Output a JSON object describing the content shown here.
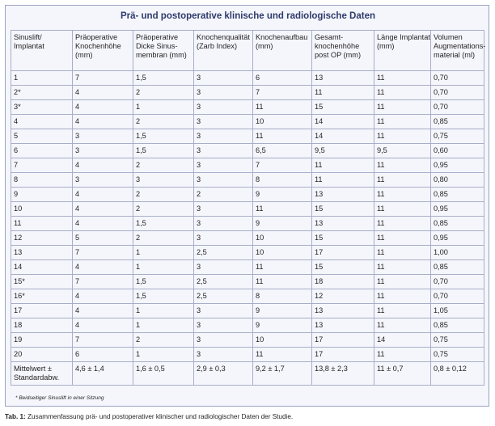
{
  "title": "Prä- und postoperative klinische und radiologische Daten",
  "headers": [
    [
      "Sinuslift/",
      "Implantat"
    ],
    [
      "Präoperative",
      "Knochenhöhe",
      "(mm)"
    ],
    [
      "Präoperative",
      "Dicke Sinus-",
      "membran (mm)"
    ],
    [
      "Knochenqualität",
      "(Zarb Index)"
    ],
    [
      "Knochenaufbau",
      "(mm)"
    ],
    [
      "Gesamt-",
      "knochenhöhe",
      "post OP (mm)"
    ],
    [
      "Länge Implantat",
      "(mm)"
    ],
    [
      "Volumen",
      "Augmentations-",
      "material (ml)"
    ]
  ],
  "rows": [
    [
      "1",
      "7",
      "1,5",
      "3",
      "6",
      "13",
      "11",
      "0,70"
    ],
    [
      "2*",
      "4",
      "2",
      "3",
      "7",
      "11",
      "11",
      "0,70"
    ],
    [
      "3*",
      "4",
      "1",
      "3",
      "11",
      "15",
      "11",
      "0,70"
    ],
    [
      "4",
      "4",
      "2",
      "3",
      "10",
      "14",
      "11",
      "0,85"
    ],
    [
      "5",
      "3",
      "1,5",
      "3",
      "11",
      "14",
      "11",
      "0,75"
    ],
    [
      "6",
      "3",
      "1,5",
      "3",
      "6,5",
      "9,5",
      "9,5",
      "0,60"
    ],
    [
      "7",
      "4",
      "2",
      "3",
      "7",
      "11",
      "11",
      "0,95"
    ],
    [
      "8",
      "3",
      "3",
      "3",
      "8",
      "11",
      "11",
      "0,80"
    ],
    [
      "9",
      "4",
      "2",
      "2",
      "9",
      "13",
      "11",
      "0,85"
    ],
    [
      "10",
      "4",
      "2",
      "3",
      "11",
      "15",
      "11",
      "0,95"
    ],
    [
      "11",
      "4",
      "1,5",
      "3",
      "9",
      "13",
      "11",
      "0,85"
    ],
    [
      "12",
      "5",
      "2",
      "3",
      "10",
      "15",
      "11",
      "0,95"
    ],
    [
      "13",
      "7",
      "1",
      "2,5",
      "10",
      "17",
      "11",
      "1,00"
    ],
    [
      "14",
      "4",
      "1",
      "3",
      "11",
      "15",
      "11",
      "0,85"
    ],
    [
      "15*",
      "7",
      "1,5",
      "2,5",
      "11",
      "18",
      "11",
      "0,70"
    ],
    [
      "16*",
      "4",
      "1,5",
      "2,5",
      "8",
      "12",
      "11",
      "0,70"
    ],
    [
      "17",
      "4",
      "1",
      "3",
      "9",
      "13",
      "11",
      "1,05"
    ],
    [
      "18",
      "4",
      "1",
      "3",
      "9",
      "13",
      "11",
      "0,85"
    ],
    [
      "19",
      "7",
      "2",
      "3",
      "10",
      "17",
      "14",
      "0,75"
    ],
    [
      "20",
      "6",
      "1",
      "3",
      "11",
      "17",
      "11",
      "0,75"
    ]
  ],
  "summary": {
    "label_line1": "Mittelwert ±",
    "label_line2": "Standardabw.",
    "values": [
      "4,6 ± 1,4",
      "1,6 ± 0,5",
      "2,9 ± 0,3",
      "9,2 ± 1,7",
      "13,8 ± 2,3",
      "11 ± 0,7",
      "0,8 ± 0,12"
    ]
  },
  "footnote": "* Beidseitiger Sinuslift in einer Sitzung",
  "caption_label": "Tab. 1:",
  "caption_text": " Zusammenfassung prä- und postoperativer klinischer und radiologischer Daten der Studie.",
  "colors": {
    "frame_bg": "#f4f6fb",
    "frame_border": "#9aa3c4",
    "title": "#2e3a6b",
    "grid": "#a8aec8"
  }
}
